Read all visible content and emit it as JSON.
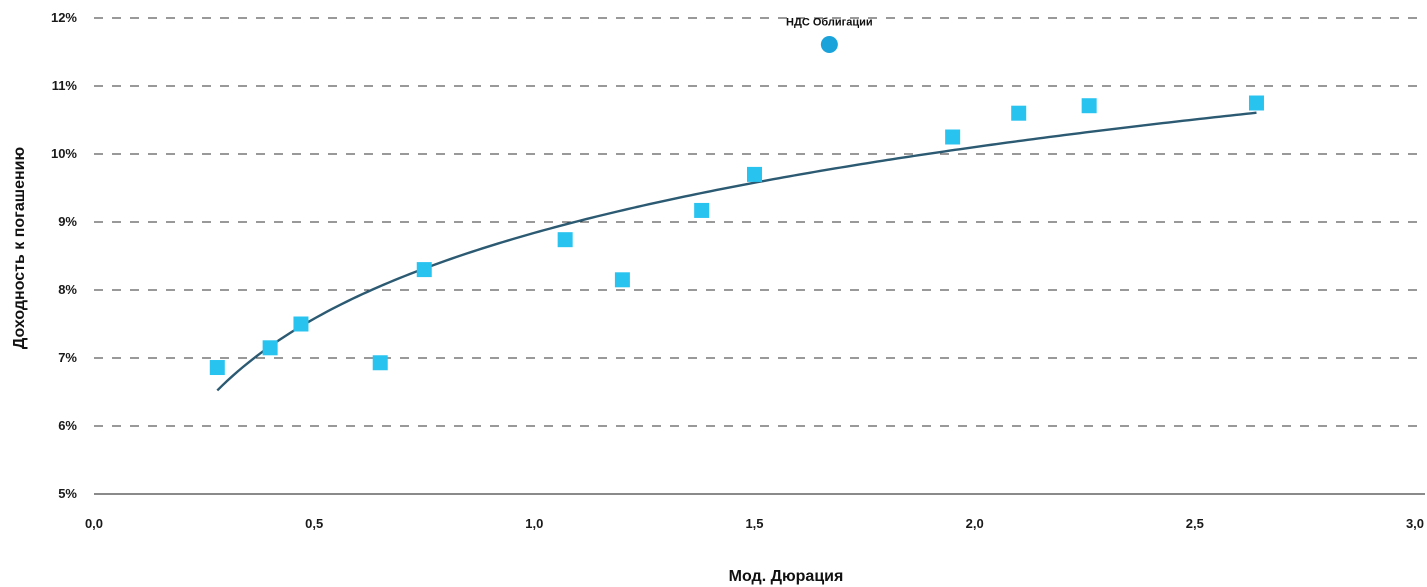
{
  "chart_data": {
    "type": "scatter",
    "xlabel": "Мод. Дюрация",
    "ylabel": "Доходность к погашению",
    "xlim": [
      0,
      3
    ],
    "ylim": [
      5,
      12
    ],
    "x_ticks": [
      "0,0",
      "0,5",
      "1,0",
      "1,5",
      "2,0",
      "2,5",
      "3,0"
    ],
    "y_ticks": [
      "5%",
      "6%",
      "7%",
      "8%",
      "9%",
      "10%",
      "11%",
      "12%"
    ],
    "grid": "horizontal-dashed",
    "series": [
      {
        "marker": "square",
        "color": "#29c3f0",
        "points": [
          {
            "x": 0.28,
            "y": 6.86
          },
          {
            "x": 0.4,
            "y": 7.15
          },
          {
            "x": 0.47,
            "y": 7.5
          },
          {
            "x": 0.65,
            "y": 6.93
          },
          {
            "x": 0.75,
            "y": 8.3
          },
          {
            "x": 1.07,
            "y": 8.74
          },
          {
            "x": 1.2,
            "y": 8.15
          },
          {
            "x": 1.38,
            "y": 9.17
          },
          {
            "x": 1.5,
            "y": 9.7
          },
          {
            "x": 1.95,
            "y": 10.25
          },
          {
            "x": 2.1,
            "y": 10.6
          },
          {
            "x": 2.26,
            "y": 10.71
          },
          {
            "x": 2.64,
            "y": 10.75
          }
        ]
      },
      {
        "marker": "circle",
        "color": "#1aa3db",
        "points": [
          {
            "x": 1.67,
            "y": 11.61,
            "label": "НДС  Облигации"
          }
        ]
      }
    ],
    "trendline": {
      "type": "logarithmic",
      "color": "#2b5a72",
      "x_range": [
        0.28,
        2.64
      ],
      "a": 8.84,
      "b": 1.82
    }
  }
}
